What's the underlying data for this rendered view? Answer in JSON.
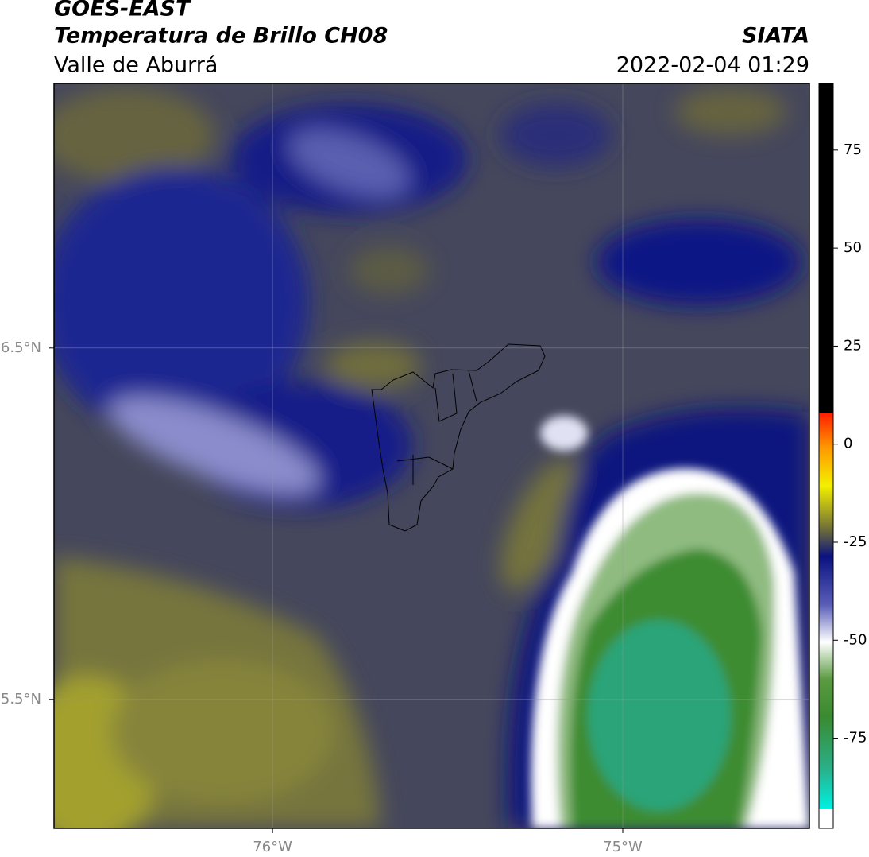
{
  "chart_data": {
    "type": "map",
    "title": "GOES-EAST",
    "subtitle": "Temperatura de Brillo CH08",
    "region": "Valle de Aburrá",
    "source": "SIATA",
    "timestamp": "2022-02-04 01:29",
    "xlim": [
      -76.624,
      -74.467
    ],
    "ylim": [
      5.133,
      7.253
    ],
    "xticks": [
      {
        "value": -76,
        "label": "76°W"
      },
      {
        "value": -75,
        "label": "75°W"
      }
    ],
    "yticks": [
      {
        "value": 6.5,
        "label": "6.5°N"
      },
      {
        "value": 5.5,
        "label": "5.5°N"
      }
    ],
    "grid": true,
    "colorbar": {
      "lim": [
        -98,
        92
      ],
      "ticks": [
        75,
        50,
        25,
        0,
        -25,
        -50,
        -75
      ]
    }
  }
}
